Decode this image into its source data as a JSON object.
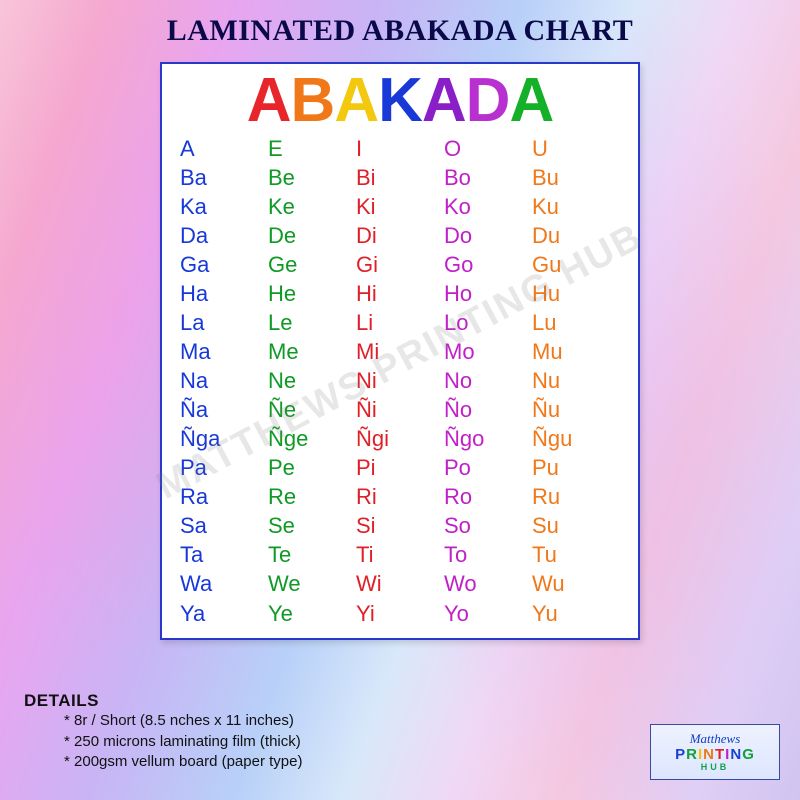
{
  "page": {
    "title": "LAMINATED ABAKADA CHART"
  },
  "chart": {
    "title_letters": [
      {
        "t": "A",
        "c": "#e8252b"
      },
      {
        "t": "B",
        "c": "#f07818"
      },
      {
        "t": "A",
        "c": "#f2c90e"
      },
      {
        "t": "K",
        "c": "#1838d8"
      },
      {
        "t": "A",
        "c": "#8a1fc8"
      },
      {
        "t": "D",
        "c": "#b830d0"
      },
      {
        "t": "A",
        "c": "#14b028"
      }
    ],
    "column_colors": [
      "#1838d8",
      "#0f9a25",
      "#e02028",
      "#c020c8",
      "#f07818"
    ],
    "rows": [
      [
        "A",
        "E",
        "I",
        "O",
        "U"
      ],
      [
        "Ba",
        "Be",
        "Bi",
        "Bo",
        "Bu"
      ],
      [
        "Ka",
        "Ke",
        "Ki",
        "Ko",
        "Ku"
      ],
      [
        "Da",
        "De",
        "Di",
        "Do",
        "Du"
      ],
      [
        "Ga",
        "Ge",
        "Gi",
        "Go",
        "Gu"
      ],
      [
        "Ha",
        "He",
        "Hi",
        "Ho",
        "Hu"
      ],
      [
        "La",
        "Le",
        "Li",
        "Lo",
        "Lu"
      ],
      [
        "Ma",
        "Me",
        "Mi",
        "Mo",
        "Mu"
      ],
      [
        "Na",
        "Ne",
        "Ni",
        "No",
        "Nu"
      ],
      [
        "Ña",
        "Ñe",
        "Ñi",
        "Ño",
        "Ñu"
      ],
      [
        "Ñga",
        "Ñge",
        "Ñgi",
        "Ñgo",
        "Ñgu"
      ],
      [
        "Pa",
        "Pe",
        "Pi",
        "Po",
        "Pu"
      ],
      [
        "Ra",
        "Re",
        "Ri",
        "Ro",
        "Ru"
      ],
      [
        "Sa",
        "Se",
        "Si",
        "So",
        "Su"
      ],
      [
        "Ta",
        "Te",
        "Ti",
        "To",
        "Tu"
      ],
      [
        "Wa",
        "We",
        "Wi",
        "Wo",
        "Wu"
      ],
      [
        "Ya",
        "Ye",
        "Yi",
        "Yo",
        "Yu"
      ]
    ],
    "watermark": "MATTHEWS PRINTING HUB"
  },
  "details": {
    "heading": "DETAILS",
    "lines": [
      "* 8r / Short (8.5 nches x 11 inches)",
      "* 250 microns laminating film (thick)",
      "* 200gsm vellum board (paper type)"
    ]
  },
  "logo": {
    "script": "Matthews",
    "main_letters": [
      {
        "t": "P",
        "c": "#1a3fd6"
      },
      {
        "t": "R",
        "c": "#12a038"
      },
      {
        "t": "I",
        "c": "#f2c400"
      },
      {
        "t": "N",
        "c": "#f07818"
      },
      {
        "t": "T",
        "c": "#e02028"
      },
      {
        "t": "I",
        "c": "#c020c8"
      },
      {
        "t": "N",
        "c": "#1a3fd6"
      },
      {
        "t": "G",
        "c": "#12a038"
      }
    ],
    "sub": "HUB"
  }
}
